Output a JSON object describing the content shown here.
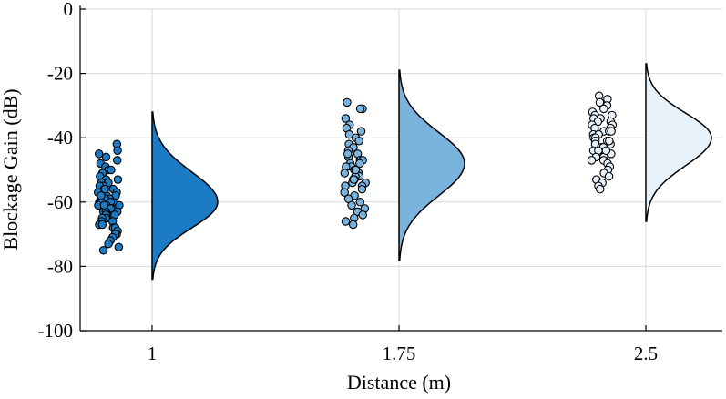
{
  "chart_data": {
    "type": "raincloud",
    "xlabel": "Distance (m)",
    "ylabel": "Blockage Gain (dB)",
    "ylim": [
      -100,
      0
    ],
    "yticks": [
      0,
      -20,
      -40,
      -60,
      -80,
      -100
    ],
    "ytick_labels": [
      "0",
      "-20",
      "-40",
      "-60",
      "-80",
      "-100"
    ],
    "grid": true,
    "categories": [
      "1",
      "1.75",
      "2.5"
    ],
    "series": [
      {
        "category": "1",
        "color": "#1b7bc4",
        "density": {
          "mode": -60,
          "min": -84,
          "max": -32
        },
        "points": [
          -42,
          -44,
          -45,
          -46,
          -47,
          -48,
          -49,
          -50,
          -50,
          -51,
          -52,
          -53,
          -53,
          -54,
          -54,
          -55,
          -55,
          -56,
          -56,
          -57,
          -57,
          -57,
          -58,
          -58,
          -58,
          -59,
          -59,
          -59,
          -60,
          -60,
          -60,
          -60,
          -61,
          -61,
          -61,
          -62,
          -62,
          -62,
          -63,
          -63,
          -63,
          -64,
          -64,
          -64,
          -65,
          -65,
          -65,
          -66,
          -66,
          -67,
          -67,
          -68,
          -68,
          -69,
          -70,
          -70,
          -71,
          -72,
          -73,
          -74,
          -75,
          -61,
          -58,
          -56
        ]
      },
      {
        "category": "1.75",
        "color": "#7ab4de",
        "density": {
          "mode": -48,
          "min": -78,
          "max": -19
        },
        "points": [
          -29,
          -31,
          -31,
          -34,
          -36,
          -37,
          -38,
          -39,
          -40,
          -41,
          -42,
          -43,
          -44,
          -45,
          -46,
          -47,
          -47,
          -48,
          -48,
          -49,
          -49,
          -50,
          -50,
          -51,
          -51,
          -52,
          -52,
          -53,
          -53,
          -54,
          -54,
          -55,
          -55,
          -56,
          -57,
          -58,
          -59,
          -60,
          -61,
          -62,
          -63,
          -64,
          -65,
          -66,
          -67,
          -45,
          -50,
          -53
        ]
      },
      {
        "category": "2.5",
        "color": "#e8f2fb",
        "density": {
          "mode": -40,
          "min": -66,
          "max": -17
        },
        "points": [
          -27,
          -28,
          -29,
          -30,
          -31,
          -32,
          -33,
          -33,
          -34,
          -34,
          -35,
          -35,
          -36,
          -36,
          -37,
          -37,
          -38,
          -38,
          -39,
          -39,
          -40,
          -40,
          -41,
          -41,
          -42,
          -42,
          -43,
          -43,
          -44,
          -44,
          -45,
          -45,
          -46,
          -46,
          -47,
          -47,
          -48,
          -49,
          -50,
          -51,
          -52,
          -53,
          -54,
          -55,
          -56,
          -38,
          -41,
          -44
        ]
      }
    ]
  }
}
